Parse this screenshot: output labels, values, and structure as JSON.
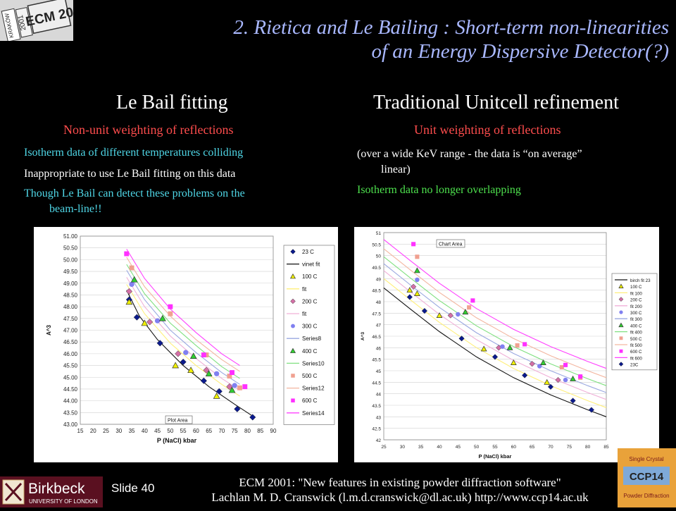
{
  "title_line1": "2. Rietica and Le Bailing : Short-term non-linearities",
  "title_line2": "of an Energy Dispersive Detector(?)",
  "logo_topleft": {
    "text1": "KRAKÓW",
    "text2": "2001",
    "text3": "ECM 20"
  },
  "left": {
    "heading": "Le Bail fitting",
    "subheading": "Non-unit weighting of reflections",
    "line1": "Isotherm data of different temperatures colliding",
    "line2": "Inappropriate to use Le Bail fitting on this data",
    "line3a": "Though Le Bail can detect these problems on the",
    "line3b": "beam-line!!"
  },
  "right": {
    "heading": "Traditional Unitcell refinement",
    "subheading": "Unit weighting of reflections",
    "line1a": "(over a wide KeV range - the data is “on average”",
    "line1b": "linear)",
    "line2": "Isotherm data no longer overlapping"
  },
  "footer": {
    "slide": "Slide 40",
    "line1": "ECM 2001: \"New features in existing powder diffraction software\"",
    "line2": "Lachlan M. D. Cranswick (l.m.d.cranswick@dl.ac.uk) http://www.ccp14.ac.uk"
  },
  "logo_birkbeck": {
    "name": "Birkbeck",
    "sub": "UNIVERSITY OF LONDON"
  },
  "logo_ccp14": {
    "text": "CCP14",
    "top": "Single Crystal",
    "bottom": "Powder Diffraction"
  },
  "chart_data": [
    {
      "type": "scatter",
      "xlabel": "P (NaCl) kbar",
      "ylabel": "A^3",
      "xlim": [
        15,
        90
      ],
      "ylim": [
        43.0,
        51.0
      ],
      "xticks": [
        "15",
        "20",
        "25",
        "30",
        "35",
        "40",
        "45",
        "50",
        "55",
        "60",
        "65",
        "70",
        "75",
        "80",
        "85",
        "90"
      ],
      "yticks": [
        "43.00",
        "43.50",
        "44.00",
        "44.50",
        "45.00",
        "45.50",
        "46.00",
        "46.50",
        "47.00",
        "47.50",
        "48.00",
        "48.50",
        "49.00",
        "49.50",
        "50.00",
        "50.50",
        "51.00"
      ],
      "annotation": "Plot Area",
      "legend_position": "right",
      "series": [
        {
          "name": "23 C",
          "marker": "diamond",
          "color": "#0b1a8c",
          "points": [
            [
              34,
              48.3
            ],
            [
              37,
              47.55
            ],
            [
              46,
              46.45
            ],
            [
              55,
              45.65
            ],
            [
              63,
              44.85
            ],
            [
              69,
              44.4
            ],
            [
              76,
              43.65
            ],
            [
              82,
              43.3
            ]
          ]
        },
        {
          "name": "vinet fit",
          "line": true,
          "color": "#111111",
          "points": [
            [
              33,
              48.7
            ],
            [
              38,
              47.6
            ],
            [
              45,
              46.6
            ],
            [
              55,
              45.5
            ],
            [
              65,
              44.6
            ],
            [
              75,
              43.85
            ],
            [
              82,
              43.35
            ]
          ]
        },
        {
          "name": "100 C",
          "marker": "triangle",
          "color": "#f0f000",
          "points": [
            [
              34,
              48.2
            ],
            [
              40,
              47.3
            ],
            [
              52,
              45.5
            ],
            [
              58,
              45.3
            ],
            [
              68,
              44.2
            ]
          ]
        },
        {
          "name": "fit",
          "line": true,
          "color": "#ffef7a",
          "points": [
            [
              33,
              48.95
            ],
            [
              40,
              47.7
            ],
            [
              50,
              46.45
            ],
            [
              60,
              45.5
            ],
            [
              70,
              44.7
            ],
            [
              77,
              44.2
            ]
          ]
        },
        {
          "name": "200 C",
          "marker": "diamond",
          "color": "#d46fa6",
          "points": [
            [
              34,
              48.65
            ],
            [
              42,
              47.35
            ],
            [
              53,
              46.0
            ],
            [
              64,
              45.3
            ],
            [
              73,
              44.6
            ]
          ]
        },
        {
          "name": "fit",
          "line": true,
          "color": "#f0b0d8",
          "points": [
            [
              33,
              49.25
            ],
            [
              40,
              48.0
            ],
            [
              50,
              46.75
            ],
            [
              60,
              45.8
            ],
            [
              70,
              44.95
            ],
            [
              77,
              44.45
            ]
          ]
        },
        {
          "name": "300 C",
          "marker": "circle",
          "color": "#8080f0",
          "points": [
            [
              35,
              48.95
            ],
            [
              45,
              47.4
            ],
            [
              56,
              46.05
            ],
            [
              68,
              45.15
            ],
            [
              75,
              44.65
            ]
          ]
        },
        {
          "name": "Series8",
          "line": true,
          "color": "#9aa8e0",
          "points": [
            [
              33,
              49.55
            ],
            [
              40,
              48.3
            ],
            [
              50,
              47.0
            ],
            [
              60,
              46.05
            ],
            [
              70,
              45.2
            ],
            [
              77,
              44.7
            ]
          ]
        },
        {
          "name": "400 C",
          "marker": "triangle",
          "color": "#30d030",
          "points": [
            [
              36,
              49.15
            ],
            [
              47,
              47.5
            ],
            [
              59,
              45.9
            ],
            [
              65,
              45.15
            ],
            [
              74,
              44.45
            ]
          ]
        },
        {
          "name": "Series10",
          "line": true,
          "color": "#80e080",
          "points": [
            [
              33,
              49.8
            ],
            [
              40,
              48.55
            ],
            [
              50,
              47.3
            ],
            [
              60,
              46.35
            ],
            [
              70,
              45.45
            ],
            [
              77,
              44.95
            ]
          ]
        },
        {
          "name": "500 C",
          "marker": "square",
          "color": "#f0a090",
          "points": [
            [
              35,
              49.65
            ],
            [
              50,
              47.7
            ],
            [
              64,
              45.95
            ],
            [
              73,
              45.05
            ],
            [
              77,
              44.55
            ]
          ]
        },
        {
          "name": "Series12",
          "line": true,
          "color": "#f3b6a0",
          "points": [
            [
              33,
              50.1
            ],
            [
              40,
              48.85
            ],
            [
              50,
              47.6
            ],
            [
              60,
              46.6
            ],
            [
              70,
              45.75
            ],
            [
              77,
              45.25
            ]
          ]
        },
        {
          "name": "600 C",
          "marker": "square",
          "color": "#ff30ff",
          "points": [
            [
              33,
              50.25
            ],
            [
              50,
              48.0
            ],
            [
              63,
              45.95
            ],
            [
              74,
              45.2
            ],
            [
              79,
              44.6
            ]
          ]
        },
        {
          "name": "Series14",
          "line": true,
          "color": "#ff40ff",
          "points": [
            [
              33,
              50.45
            ],
            [
              40,
              49.2
            ],
            [
              50,
              47.9
            ],
            [
              60,
              46.9
            ],
            [
              70,
              46.0
            ],
            [
              77,
              45.5
            ]
          ]
        }
      ]
    },
    {
      "type": "scatter",
      "xlabel": "P (NaCl) kbar",
      "ylabel": "A^3",
      "xlim": [
        25,
        85
      ],
      "ylim": [
        42,
        51
      ],
      "xticks": [
        "25",
        "30",
        "35",
        "40",
        "45",
        "50",
        "55",
        "60",
        "65",
        "70",
        "75",
        "80",
        "85"
      ],
      "yticks": [
        "42",
        "42.5",
        "43",
        "43.5",
        "44",
        "44.5",
        "45",
        "45.5",
        "46",
        "46.5",
        "47",
        "47.5",
        "48",
        "48.5",
        "49",
        "49.5",
        "50",
        "50.5",
        "51"
      ],
      "annotation": "Chart Area",
      "legend_position": "right",
      "series": [
        {
          "name": "birch fit 23",
          "line": true,
          "color": "#111111",
          "points": [
            [
              25,
              48.6
            ],
            [
              32,
              47.7
            ],
            [
              40,
              46.7
            ],
            [
              50,
              45.6
            ],
            [
              60,
              44.7
            ],
            [
              70,
              43.95
            ],
            [
              80,
              43.3
            ],
            [
              85,
              43.0
            ]
          ]
        },
        {
          "name": "100 C",
          "marker": "triangle",
          "color": "#f0f000",
          "points": [
            [
              32,
              48.5
            ],
            [
              34,
              48.35
            ],
            [
              40,
              47.4
            ],
            [
              52,
              45.95
            ],
            [
              60,
              45.35
            ],
            [
              69,
              44.5
            ]
          ]
        },
        {
          "name": "fit 100",
          "line": true,
          "color": "#ffef7a",
          "points": [
            [
              25,
              49.0
            ],
            [
              32,
              48.1
            ],
            [
              40,
              47.1
            ],
            [
              50,
              46.0
            ],
            [
              60,
              45.1
            ],
            [
              70,
              44.35
            ],
            [
              80,
              43.7
            ],
            [
              85,
              43.4
            ]
          ]
        },
        {
          "name": "200 C",
          "marker": "diamond",
          "color": "#d46fa6",
          "points": [
            [
              33,
              48.65
            ],
            [
              43,
              47.4
            ],
            [
              56,
              46.0
            ],
            [
              65,
              45.3
            ],
            [
              72,
              44.6
            ]
          ]
        },
        {
          "name": "fit 200",
          "line": true,
          "color": "#f0b0d8",
          "points": [
            [
              25,
              49.35
            ],
            [
              32,
              48.45
            ],
            [
              40,
              47.45
            ],
            [
              50,
              46.35
            ],
            [
              60,
              45.45
            ],
            [
              70,
              44.7
            ],
            [
              80,
              44.05
            ],
            [
              85,
              43.75
            ]
          ]
        },
        {
          "name": "300 C",
          "marker": "circle",
          "color": "#8080f0",
          "points": [
            [
              34,
              48.95
            ],
            [
              45,
              47.45
            ],
            [
              57,
              46.05
            ],
            [
              67,
              45.2
            ],
            [
              74,
              44.6
            ]
          ]
        },
        {
          "name": "fit 300",
          "line": true,
          "color": "#9aa8e0",
          "points": [
            [
              25,
              49.65
            ],
            [
              32,
              48.75
            ],
            [
              40,
              47.75
            ],
            [
              50,
              46.65
            ],
            [
              60,
              45.75
            ],
            [
              70,
              45.0
            ],
            [
              80,
              44.35
            ],
            [
              85,
              44.05
            ]
          ]
        },
        {
          "name": "400 C",
          "marker": "triangle",
          "color": "#30d030",
          "points": [
            [
              34,
              49.35
            ],
            [
              47,
              47.55
            ],
            [
              59,
              46.0
            ],
            [
              68,
              45.35
            ],
            [
              76,
              44.65
            ]
          ]
        },
        {
          "name": "fit 400",
          "line": true,
          "color": "#80e080",
          "points": [
            [
              25,
              49.95
            ],
            [
              32,
              49.05
            ],
            [
              40,
              48.05
            ],
            [
              50,
              46.95
            ],
            [
              60,
              46.05
            ],
            [
              70,
              45.3
            ],
            [
              80,
              44.65
            ],
            [
              85,
              44.35
            ]
          ]
        },
        {
          "name": "500 C",
          "marker": "square",
          "color": "#f0a090",
          "points": [
            [
              34,
              49.95
            ],
            [
              48,
              47.75
            ],
            [
              61,
              46.1
            ],
            [
              73,
              45.15
            ],
            [
              78,
              44.7
            ]
          ]
        },
        {
          "name": "fit 500",
          "line": true,
          "color": "#f3b6a0",
          "points": [
            [
              25,
              50.3
            ],
            [
              32,
              49.4
            ],
            [
              40,
              48.4
            ],
            [
              50,
              47.3
            ],
            [
              60,
              46.4
            ],
            [
              70,
              45.65
            ],
            [
              80,
              45.0
            ],
            [
              85,
              44.7
            ]
          ]
        },
        {
          "name": "600 C",
          "marker": "square",
          "color": "#ff30ff",
          "points": [
            [
              33,
              50.5
            ],
            [
              49,
              48.05
            ],
            [
              63,
              46.15
            ],
            [
              74,
              45.25
            ],
            [
              78,
              44.75
            ]
          ]
        },
        {
          "name": "fit 600",
          "line": true,
          "color": "#ff40ff",
          "points": [
            [
              25,
              50.7
            ],
            [
              32,
              49.8
            ],
            [
              40,
              48.8
            ],
            [
              50,
              47.7
            ],
            [
              60,
              46.8
            ],
            [
              70,
              46.05
            ],
            [
              80,
              45.4
            ],
            [
              85,
              45.1
            ]
          ]
        },
        {
          "name": "23C",
          "marker": "diamond",
          "color": "#0b1a8c",
          "points": [
            [
              32,
              48.2
            ],
            [
              36,
              47.6
            ],
            [
              46,
              46.4
            ],
            [
              55,
              45.6
            ],
            [
              63,
              44.8
            ],
            [
              70,
              44.3
            ],
            [
              76,
              43.7
            ],
            [
              81,
              43.3
            ]
          ]
        }
      ]
    }
  ]
}
